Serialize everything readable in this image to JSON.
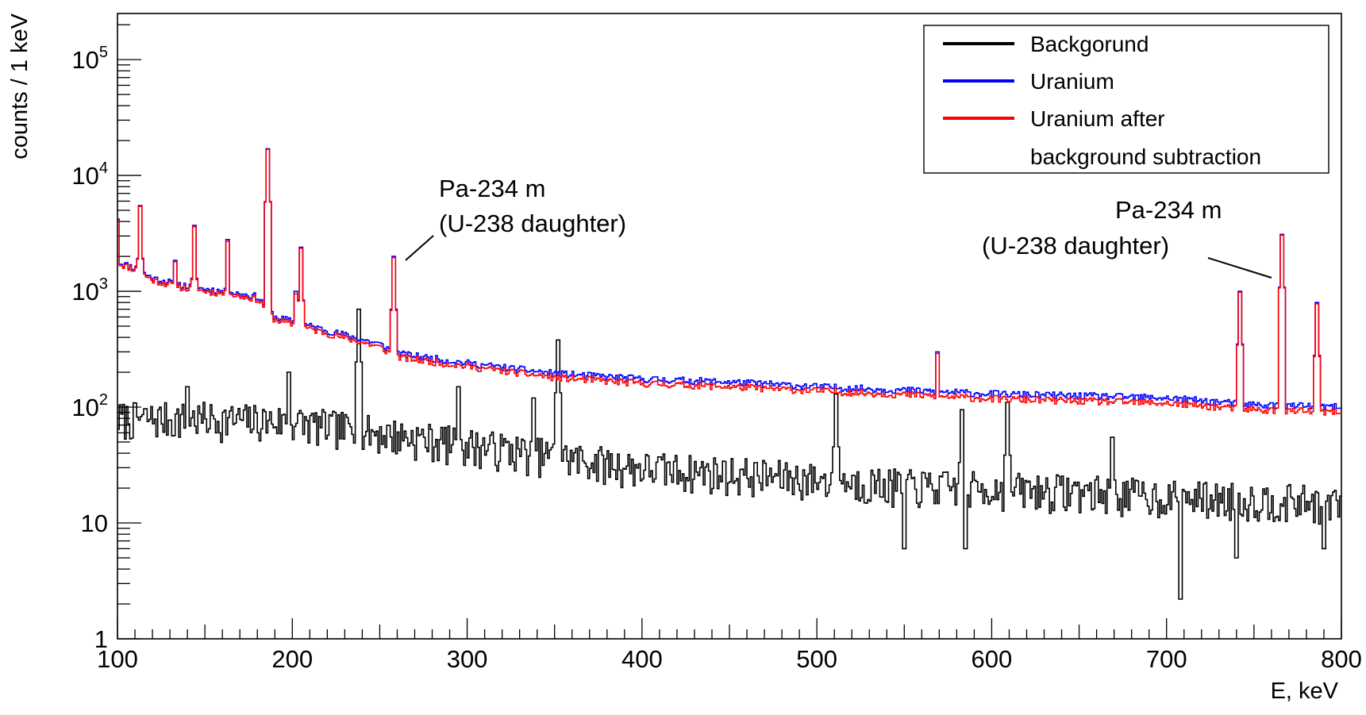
{
  "chart_data": {
    "type": "line",
    "title": "",
    "xlabel": "E, keV",
    "ylabel": "counts / 1 keV",
    "x_range": [
      100,
      800
    ],
    "y_range": [
      1,
      250000
    ],
    "y_scale": "log",
    "x_ticks": [
      100,
      200,
      300,
      400,
      500,
      600,
      700,
      800
    ],
    "x_tick_labels": [
      "100",
      "200",
      "300",
      "400",
      "500",
      "600",
      "700",
      "800"
    ],
    "y_ticks": [
      {
        "value": 1,
        "base": "1",
        "exp": ""
      },
      {
        "value": 10,
        "base": "10",
        "exp": ""
      },
      {
        "value": 100,
        "base": "10",
        "exp": "2"
      },
      {
        "value": 1000,
        "base": "10",
        "exp": "3"
      },
      {
        "value": 10000,
        "base": "10",
        "exp": "4"
      },
      {
        "value": 100000,
        "base": "10",
        "exp": "5"
      }
    ],
    "legend_position": "top-right",
    "series": [
      {
        "name": "Backgorund",
        "color": "#000000",
        "continuum": [
          [
            100,
            80
          ],
          [
            150,
            80
          ],
          [
            200,
            75
          ],
          [
            250,
            60
          ],
          [
            300,
            48
          ],
          [
            350,
            38
          ],
          [
            400,
            30
          ],
          [
            450,
            27
          ],
          [
            500,
            24
          ],
          [
            550,
            21
          ],
          [
            600,
            20
          ],
          [
            650,
            19
          ],
          [
            700,
            17
          ],
          [
            750,
            16
          ],
          [
            800,
            15
          ]
        ],
        "peaks": [
          [
            140,
            150
          ],
          [
            198,
            200
          ],
          [
            238,
            700
          ],
          [
            295,
            150
          ],
          [
            338,
            120
          ],
          [
            352,
            380
          ],
          [
            511,
            130
          ],
          [
            583,
            95
          ],
          [
            609,
            110
          ],
          [
            669,
            55
          ]
        ],
        "dips": [
          [
            550,
            6
          ],
          [
            585,
            6
          ],
          [
            708,
            2.2
          ],
          [
            740,
            5
          ],
          [
            790,
            6
          ]
        ]
      },
      {
        "name": "Uranium",
        "color": "#0000ff",
        "continuum": [
          [
            100,
            1800
          ],
          [
            110,
            1600
          ],
          [
            120,
            1300
          ],
          [
            140,
            1100
          ],
          [
            160,
            1000
          ],
          [
            180,
            900
          ],
          [
            190,
            600
          ],
          [
            200,
            550
          ],
          [
            250,
            350
          ],
          [
            260,
            290
          ],
          [
            300,
            240
          ],
          [
            350,
            195
          ],
          [
            400,
            175
          ],
          [
            450,
            165
          ],
          [
            500,
            150
          ],
          [
            550,
            140
          ],
          [
            600,
            130
          ],
          [
            650,
            125
          ],
          [
            700,
            120
          ],
          [
            750,
            105
          ],
          [
            800,
            100
          ]
        ],
        "peaks": [
          [
            100,
            4200
          ],
          [
            113,
            5500
          ],
          [
            133,
            1850
          ],
          [
            144,
            3700
          ],
          [
            163,
            2800
          ],
          [
            186,
            17000
          ],
          [
            202,
            1000
          ],
          [
            205,
            2400
          ],
          [
            258,
            2000
          ],
          [
            569,
            300
          ],
          [
            742,
            1000
          ],
          [
            766,
            3100
          ],
          [
            786,
            800
          ]
        ]
      },
      {
        "name": "Uranium after background subtraction",
        "color": "#ff0000",
        "continuum": [
          [
            100,
            1750
          ],
          [
            110,
            1550
          ],
          [
            120,
            1250
          ],
          [
            140,
            1050
          ],
          [
            160,
            960
          ],
          [
            180,
            860
          ],
          [
            190,
            570
          ],
          [
            200,
            520
          ],
          [
            250,
            330
          ],
          [
            260,
            270
          ],
          [
            300,
            225
          ],
          [
            350,
            180
          ],
          [
            400,
            160
          ],
          [
            450,
            150
          ],
          [
            500,
            138
          ],
          [
            550,
            128
          ],
          [
            600,
            118
          ],
          [
            650,
            113
          ],
          [
            700,
            108
          ],
          [
            750,
            95
          ],
          [
            800,
            90
          ]
        ],
        "peaks": [
          [
            100,
            4100
          ],
          [
            113,
            5400
          ],
          [
            133,
            1800
          ],
          [
            144,
            3600
          ],
          [
            163,
            2700
          ],
          [
            186,
            16800
          ],
          [
            202,
            950
          ],
          [
            205,
            2350
          ],
          [
            258,
            1950
          ],
          [
            569,
            290
          ],
          [
            742,
            980
          ],
          [
            766,
            3050
          ],
          [
            786,
            780
          ]
        ]
      }
    ],
    "legend": {
      "entries": [
        {
          "lines": [
            "Backgorund"
          ],
          "color": "#000000"
        },
        {
          "lines": [
            "Uranium"
          ],
          "color": "#0000ff"
        },
        {
          "lines": [
            "Uranium after",
            "background subtraction"
          ],
          "color": "#ff0000"
        }
      ]
    },
    "annotations": [
      {
        "lines": [
          "Pa-234 m",
          "(U-238 daughter)"
        ],
        "points_to": [
          258,
          2000
        ]
      },
      {
        "lines": [
          "Pa-234 m",
          "(U-238 daughter)"
        ],
        "points_to": [
          766,
          3100
        ]
      }
    ]
  }
}
